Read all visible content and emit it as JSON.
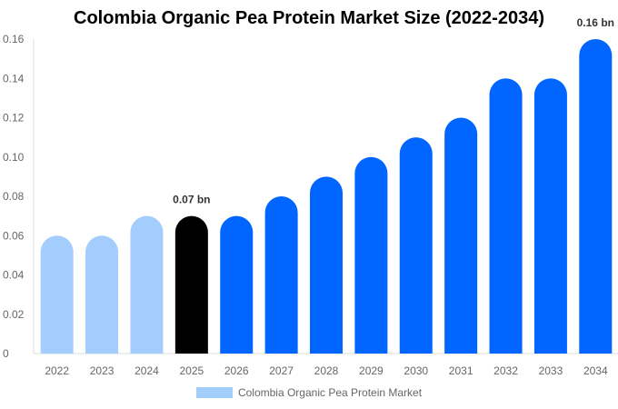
{
  "chart_data": {
    "type": "bar",
    "title": "Colombia Organic Pea Protein Market Size (2022-2034)",
    "categories": [
      "2022",
      "2023",
      "2024",
      "2025",
      "2026",
      "2027",
      "2028",
      "2029",
      "2030",
      "2031",
      "2032",
      "2033",
      "2034"
    ],
    "series": [
      {
        "name": "Colombia Organic Pea Protein Market",
        "values": [
          0.06,
          0.06,
          0.07,
          0.07,
          0.07,
          0.08,
          0.09,
          0.1,
          0.11,
          0.12,
          0.14,
          0.14,
          0.16
        ]
      }
    ],
    "ylim": [
      0,
      0.16
    ],
    "yticks": [
      "0",
      "0.02",
      "0.04",
      "0.06",
      "0.08",
      "0.10",
      "0.12",
      "0.14",
      "0.16"
    ],
    "data_labels": {
      "2025": "0.07 bn",
      "2034": "0.16 bn"
    },
    "grid": false,
    "legend_position": "bottom",
    "colors": {
      "historical": "#a3cdfd",
      "current": "#000000",
      "forecast": "#0066ff",
      "legend": "#a3cdfd"
    }
  }
}
